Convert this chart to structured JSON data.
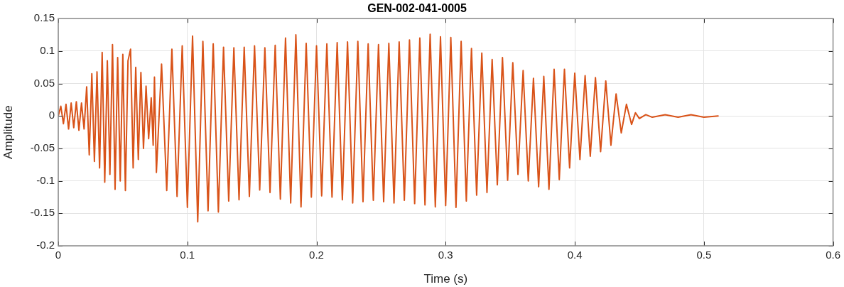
{
  "chart_data": {
    "type": "line",
    "title": "GEN-002-041-0005",
    "xlabel": "Time (s)",
    "ylabel": "Amplitude",
    "x": [
      0,
      0.002,
      0.004,
      0.006,
      0.008,
      0.01,
      0.012,
      0.014,
      0.016,
      0.018,
      0.02,
      0.022,
      0.024,
      0.026,
      0.028,
      0.03,
      0.032,
      0.034,
      0.036,
      0.038,
      0.04,
      0.042,
      0.044,
      0.046,
      0.048,
      0.05,
      0.052,
      0.054,
      0.056,
      0.058,
      0.06,
      0.062,
      0.064,
      0.066,
      0.068,
      0.07,
      0.072,
      0.0735,
      0.0745,
      0.076,
      0.08,
      0.084,
      0.088,
      0.092,
      0.096,
      0.1,
      0.104,
      0.108,
      0.112,
      0.116,
      0.12,
      0.124,
      0.128,
      0.132,
      0.136,
      0.14,
      0.144,
      0.148,
      0.152,
      0.156,
      0.16,
      0.164,
      0.168,
      0.172,
      0.176,
      0.18,
      0.184,
      0.188,
      0.192,
      0.196,
      0.2,
      0.204,
      0.208,
      0.212,
      0.216,
      0.22,
      0.224,
      0.228,
      0.232,
      0.236,
      0.24,
      0.244,
      0.248,
      0.252,
      0.256,
      0.26,
      0.264,
      0.268,
      0.272,
      0.276,
      0.28,
      0.284,
      0.288,
      0.292,
      0.296,
      0.3,
      0.304,
      0.308,
      0.312,
      0.316,
      0.32,
      0.324,
      0.328,
      0.332,
      0.336,
      0.34,
      0.344,
      0.348,
      0.352,
      0.356,
      0.36,
      0.364,
      0.368,
      0.372,
      0.376,
      0.38,
      0.384,
      0.388,
      0.392,
      0.396,
      0.4,
      0.404,
      0.408,
      0.412,
      0.416,
      0.42,
      0.424,
      0.428,
      0.432,
      0.436,
      0.44,
      0.444,
      0.447,
      0.45,
      0.455,
      0.46,
      0.47,
      0.48,
      0.49,
      0.5,
      0.511
    ],
    "values": [
      0,
      0.015,
      -0.012,
      0.018,
      -0.02,
      0.02,
      -0.018,
      0.022,
      -0.022,
      0.02,
      -0.02,
      0.045,
      -0.06,
      0.065,
      -0.07,
      0.068,
      -0.08,
      0.098,
      -0.102,
      0.085,
      -0.09,
      0.11,
      -0.113,
      0.09,
      -0.1,
      0.095,
      -0.115,
      0.085,
      0.103,
      -0.08,
      0.075,
      -0.067,
      0.067,
      -0.05,
      0.046,
      -0.035,
      0.028,
      -0.045,
      0.06,
      -0.087,
      0.08,
      -0.115,
      0.103,
      -0.124,
      0.108,
      -0.141,
      0.123,
      -0.163,
      0.115,
      -0.146,
      0.111,
      -0.148,
      0.106,
      -0.131,
      0.105,
      -0.129,
      0.106,
      -0.124,
      0.108,
      -0.114,
      0.105,
      -0.118,
      0.109,
      -0.128,
      0.12,
      -0.134,
      0.125,
      -0.14,
      0.112,
      -0.125,
      0.108,
      -0.123,
      0.111,
      -0.125,
      0.113,
      -0.129,
      0.114,
      -0.134,
      0.115,
      -0.132,
      0.111,
      -0.13,
      0.11,
      -0.132,
      0.112,
      -0.134,
      0.114,
      -0.13,
      0.117,
      -0.135,
      0.12,
      -0.137,
      0.126,
      -0.14,
      0.122,
      -0.138,
      0.121,
      -0.141,
      0.115,
      -0.131,
      0.104,
      -0.122,
      0.097,
      -0.118,
      0.087,
      -0.106,
      0.09,
      -0.099,
      0.082,
      -0.09,
      0.07,
      -0.1,
      0.058,
      -0.109,
      0.061,
      -0.113,
      0.072,
      -0.098,
      0.072,
      -0.08,
      0.066,
      -0.067,
      0.062,
      -0.062,
      0.059,
      -0.055,
      0.054,
      -0.045,
      0.034,
      -0.026,
      0.018,
      -0.013,
      0.005,
      -0.004,
      0.002,
      -0.002,
      0.002,
      -0.002,
      0.002,
      -0.002,
      0
    ],
    "color": "#d95319",
    "marker": "none",
    "line_style": "solid",
    "xlim": [
      0,
      0.6
    ],
    "xticks": [
      0,
      0.1,
      0.2,
      0.3,
      0.4,
      0.5,
      0.6
    ],
    "ylim": [
      -0.2,
      0.15
    ],
    "yticks": [
      -0.2,
      -0.15,
      -0.1,
      -0.05,
      0,
      0.05,
      0.1,
      0.15
    ],
    "grid": true
  }
}
